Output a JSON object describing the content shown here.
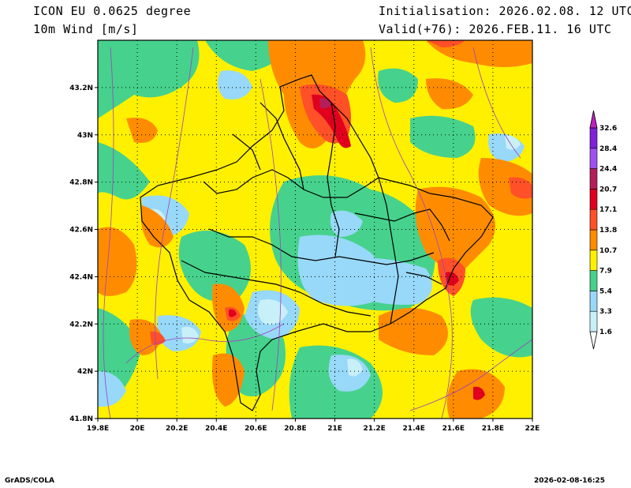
{
  "header": {
    "model": "ICON EU 0.0625 degree",
    "field": "10m Wind [m/s]",
    "init": "Initialisation: 2026.02.08. 12 UTC",
    "valid": "Valid(+76): 2026.FEB.11. 16 UTC"
  },
  "map": {
    "lon_range": [
      19.8,
      22.0
    ],
    "lat_range": [
      41.8,
      43.4
    ],
    "lon_ticks": [
      "19.8E",
      "20E",
      "20.2E",
      "20.4E",
      "20.6E",
      "20.8E",
      "21E",
      "21.2E",
      "21.4E",
      "21.6E",
      "21.8E",
      "22E"
    ],
    "lat_ticks": [
      "41.8N",
      "42N",
      "42.2N",
      "42.4N",
      "42.6N",
      "42.8N",
      "43N",
      "43.2N"
    ],
    "grid": "dotted"
  },
  "colorbar": {
    "levels": [
      "1.6",
      "3.3",
      "5.4",
      "7.9",
      "10.7",
      "13.8",
      "17.1",
      "20.7",
      "24.4",
      "28.4",
      "32.6"
    ],
    "colors": [
      "#c8f0f8",
      "#98d8f8",
      "#46d28c",
      "#fff000",
      "#ff8c00",
      "#ff5028",
      "#e0001e",
      "#b41e5a",
      "#a050f0",
      "#8020d8",
      "#c020c0"
    ]
  },
  "footer": {
    "left": "GrADS/COLA",
    "right": "2026-02-08-16:25"
  }
}
